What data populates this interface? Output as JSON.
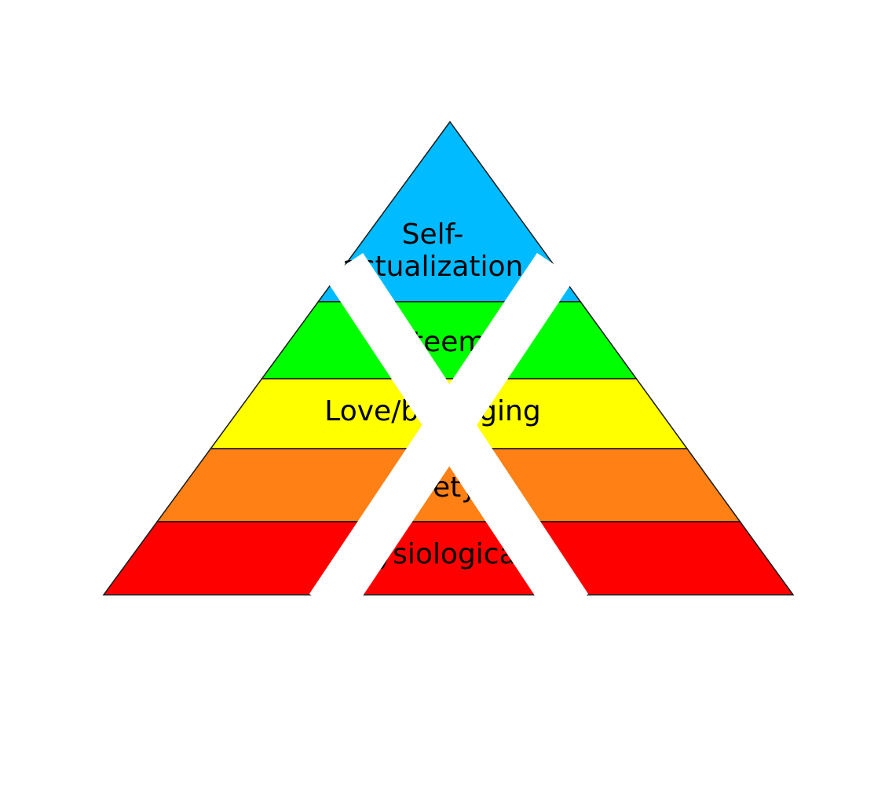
{
  "diagram": {
    "levels": [
      {
        "id": "self-actualization",
        "lines": [
          "Self-",
          "actualization"
        ],
        "color": "#00bbff"
      },
      {
        "id": "esteem",
        "lines": [
          "Esteem"
        ],
        "color": "#00ff00"
      },
      {
        "id": "love-belonging",
        "lines": [
          "Love/belonging"
        ],
        "color": "#ffff00"
      },
      {
        "id": "safety",
        "lines": [
          "Safety"
        ],
        "color": "#ff8015"
      },
      {
        "id": "physiological",
        "lines": [
          "Physiological"
        ],
        "color": "#ff0000"
      }
    ],
    "overlay": {
      "shape": "cross-mark",
      "color": "#ffffff"
    }
  }
}
